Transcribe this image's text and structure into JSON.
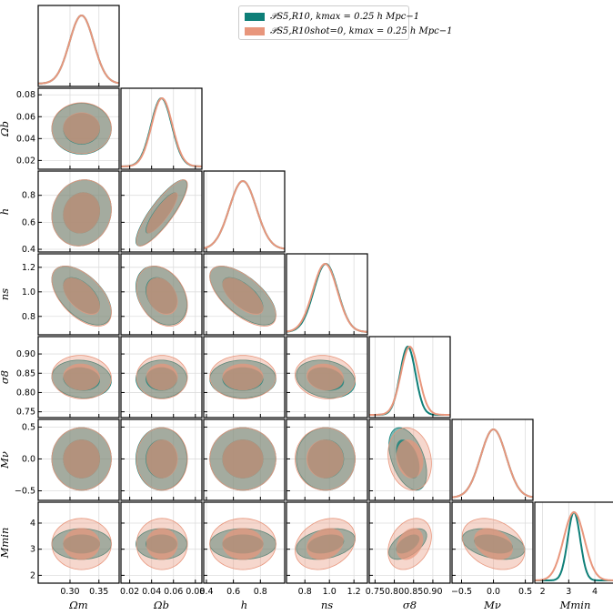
{
  "chart_data": {
    "type": "corner",
    "parameters": [
      {
        "name": "Ωm",
        "label": "Ωm",
        "range": [
          0.245,
          0.385
        ],
        "ticks": [
          0.3,
          0.35
        ],
        "tick_labels": [
          "0.30",
          "0.35"
        ]
      },
      {
        "name": "Ωb",
        "label": "Ωb",
        "range": [
          0.012,
          0.086
        ],
        "ticks": [
          0.02,
          0.04,
          0.06,
          0.08
        ],
        "tick_labels": [
          "0.02",
          "0.04",
          "0.06",
          "0.08"
        ]
      },
      {
        "name": "h",
        "label": "h",
        "range": [
          0.38,
          0.98
        ],
        "ticks": [
          0.4,
          0.6,
          0.8
        ],
        "tick_labels": [
          "0.4",
          "0.6",
          "0.8"
        ]
      },
      {
        "name": "ns",
        "label": "ns",
        "range": [
          0.65,
          1.31
        ],
        "ticks": [
          0.8,
          1.0,
          1.2
        ],
        "tick_labels": [
          "0.8",
          "1.0",
          "1.2"
        ]
      },
      {
        "name": "σ8",
        "label": "σ8",
        "range": [
          0.735,
          0.945
        ],
        "ticks": [
          0.75,
          0.8,
          0.85,
          0.9
        ],
        "tick_labels": [
          "0.75",
          "0.80",
          "0.85",
          "0.90"
        ]
      },
      {
        "name": "Mν",
        "label": "Mν",
        "range": [
          -0.65,
          0.62
        ],
        "ticks": [
          -0.5,
          0.0,
          0.5
        ],
        "tick_labels": [
          "−0.5",
          "0.0",
          "0.5"
        ]
      },
      {
        "name": "Mmin",
        "label": "Mmin",
        "range": [
          1.7,
          4.8
        ],
        "ticks": [
          2,
          3,
          4
        ],
        "tick_labels": [
          "2",
          "3",
          "4"
        ]
      }
    ],
    "series": [
      {
        "name": "P_S5,R10, kmax = 0.25 h Mpc−1",
        "color": "#0e7f78",
        "mean": [
          0.32,
          0.049,
          0.67,
          0.97,
          0.835,
          0.0,
          3.2
        ],
        "sigma": [
          0.021,
          0.0095,
          0.1,
          0.098,
          0.02,
          0.2,
          0.24
        ]
      },
      {
        "name": "P_S5,R10 shot=0, kmax = 0.25 h Mpc−1",
        "color": "#e8967c",
        "mean": [
          0.32,
          0.0495,
          0.67,
          0.965,
          0.84,
          0.0,
          3.2
        ],
        "sigma": [
          0.021,
          0.0095,
          0.1,
          0.1,
          0.023,
          0.2,
          0.4
        ]
      }
    ],
    "correlations": {
      "teal": {
        "1-0": 0.0,
        "2-0": 0.1,
        "2-1": 0.85,
        "3-0": -0.55,
        "3-1": -0.3,
        "3-2": -0.65,
        "4-0": -0.1,
        "4-1": 0.0,
        "4-2": 0.0,
        "4-3": -0.2,
        "5-0": 0.0,
        "5-1": 0.0,
        "5-2": 0.0,
        "5-3": 0.0,
        "5-4": -0.45,
        "6-0": 0.0,
        "6-1": 0.0,
        "6-2": 0.0,
        "6-3": 0.3,
        "6-4": 0.55,
        "6-5": -0.35
      },
      "salmon": {
        "1-0": 0.0,
        "2-0": 0.1,
        "2-1": 0.85,
        "3-0": -0.55,
        "3-1": -0.3,
        "3-2": -0.65,
        "4-0": -0.05,
        "4-1": 0.0,
        "4-2": 0.0,
        "4-3": -0.1,
        "5-0": 0.0,
        "5-1": 0.0,
        "5-2": 0.0,
        "5-3": 0.0,
        "5-4": -0.15,
        "6-0": 0.0,
        "6-1": 0.0,
        "6-2": 0.0,
        "6-3": 0.25,
        "6-4": 0.3,
        "6-5": -0.3
      }
    },
    "legend": {
      "position": "top",
      "entries": [
        {
          "label": "𝒫S5,R10, kmax = 0.25 h Mpc−1",
          "color": "#0e7f78"
        },
        {
          "label": "𝒫S5,R10shot=0, kmax = 0.25 h Mpc−1",
          "color": "#e8967c"
        }
      ]
    },
    "contour_levels": [
      "68%",
      "95%"
    ]
  }
}
